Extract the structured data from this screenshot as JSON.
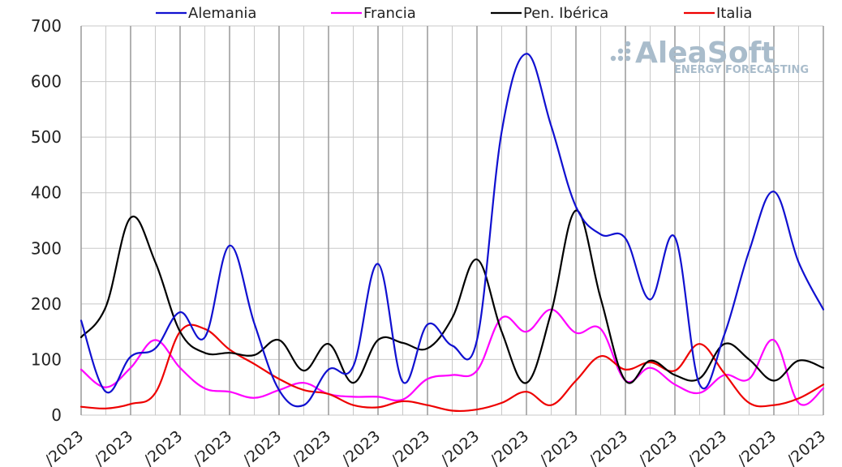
{
  "watermark": {
    "main": "AleaSoft",
    "sub": "ENERGY FORECASTING"
  },
  "chart_data": {
    "type": "line",
    "title": "",
    "xlabel": "",
    "ylabel": "",
    "ylim": [
      0,
      700
    ],
    "yticks": [
      0,
      100,
      200,
      300,
      400,
      500,
      600,
      700
    ],
    "x_visible_labels": [
      "/2023",
      "/2023",
      "/2023",
      "/2023",
      "/2023",
      "/2023",
      "/2023",
      "/2023",
      "/2023",
      "/2023",
      "/2023",
      "/2023",
      "/2023",
      "/2023",
      "/2023",
      "/2023"
    ],
    "x_count": 31,
    "grid": "vertical-every-1-horizontal-every-100",
    "legend_position": "top",
    "series": [
      {
        "name": "Alemania",
        "color": "#1010d0",
        "values": [
          170,
          42,
          105,
          120,
          185,
          140,
          305,
          165,
          45,
          18,
          82,
          88,
          272,
          60,
          163,
          125,
          135,
          510,
          650,
          520,
          375,
          325,
          318,
          208,
          320,
          55,
          145,
          295,
          402,
          275,
          190
        ]
      },
      {
        "name": "Francia",
        "color": "#ff00ff",
        "values": [
          82,
          50,
          85,
          135,
          85,
          48,
          42,
          31,
          45,
          58,
          38,
          33,
          33,
          28,
          65,
          72,
          80,
          175,
          150,
          190,
          148,
          155,
          62,
          85,
          55,
          40,
          72,
          65,
          135,
          22,
          48
        ]
      },
      {
        "name": "Pen. Ibérica",
        "color": "#000000",
        "values": [
          140,
          195,
          355,
          275,
          150,
          112,
          112,
          108,
          135,
          80,
          128,
          58,
          135,
          130,
          120,
          175,
          280,
          150,
          58,
          185,
          368,
          210,
          62,
          98,
          72,
          66,
          128,
          100,
          62,
          98,
          85
        ]
      },
      {
        "name": "Italia",
        "color": "#ee0000",
        "values": [
          15,
          12,
          20,
          40,
          150,
          155,
          118,
          92,
          65,
          45,
          38,
          18,
          14,
          25,
          18,
          8,
          10,
          22,
          42,
          18,
          62,
          106,
          82,
          95,
          80,
          128,
          75,
          22,
          18,
          30,
          55
        ]
      }
    ]
  }
}
